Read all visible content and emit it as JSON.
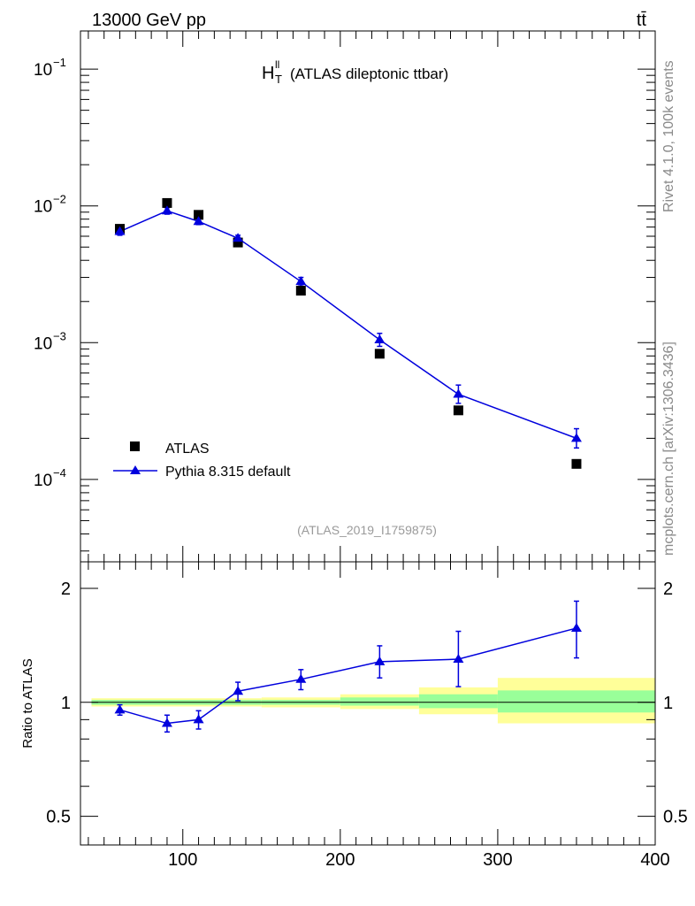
{
  "header": {
    "energy_label": "13000 GeV pp",
    "process_label": "tt̄",
    "side_top": "Rivet 4.1.0,  100k events",
    "side_bottom": "mcplots.cern.ch [arXiv:1306.3436]"
  },
  "chart_data": [
    {
      "type": "scatter",
      "title_main": "H",
      "title_sup": "ll",
      "title_sub": "T",
      "title_rest": " (ATLAS dileptonic ttbar)",
      "analysis_id": "(ATLAS_2019_I1759875)",
      "yscale": "log",
      "ylim": [
        2.5e-05,
        0.19
      ],
      "xlim": [
        35,
        400
      ],
      "ytick_labels": [
        {
          "value": 0.1,
          "base": "10",
          "exp": "−1"
        },
        {
          "value": 0.01,
          "base": "10",
          "exp": "−2"
        },
        {
          "value": 0.001,
          "base": "10",
          "exp": "−3"
        },
        {
          "value": 0.0001,
          "base": "10",
          "exp": "−4"
        }
      ],
      "legend": [
        {
          "label": "ATLAS",
          "marker": "square",
          "color": "#000000"
        },
        {
          "label": "Pythia 8.315 default",
          "marker": "triangle",
          "color": "#0000dd"
        }
      ],
      "series": [
        {
          "name": "ATLAS",
          "x": [
            60,
            90,
            110,
            135,
            175,
            225,
            275,
            350
          ],
          "y": [
            0.0068,
            0.0105,
            0.0086,
            0.0054,
            0.0024,
            0.00083,
            0.00032,
            0.00013
          ]
        },
        {
          "name": "Pythia 8.315 default",
          "x": [
            60,
            90,
            110,
            135,
            175,
            225,
            275,
            350
          ],
          "y": [
            0.0065,
            0.0092,
            0.0077,
            0.0058,
            0.0028,
            0.00105,
            0.00042,
            0.0002
          ],
          "yerr_lo": [
            0.0004,
            0.0005,
            0.0004,
            0.0003,
            0.0002,
            0.00011,
            6e-05,
            3e-05
          ],
          "yerr_hi": [
            0.0004,
            0.0005,
            0.0004,
            0.0003,
            0.0002,
            0.00012,
            7e-05,
            3.5e-05
          ]
        }
      ]
    },
    {
      "type": "scatter",
      "ylabel": "Ratio to ATLAS",
      "xlim": [
        35,
        400
      ],
      "ylim": [
        0.42,
        2.35
      ],
      "yscale": "log",
      "xticks": [
        100,
        200,
        300,
        400
      ],
      "xtick_labels": [
        "100",
        "200",
        "300",
        "400"
      ],
      "yticks": [
        0.5,
        1,
        2
      ],
      "ytick_labels": [
        "0.5",
        "1",
        "2"
      ],
      "bands": [
        {
          "x0": 42,
          "x1": 150,
          "green_lo": 0.985,
          "green_hi": 1.015,
          "yellow_lo": 0.975,
          "yellow_hi": 1.025
        },
        {
          "x0": 150,
          "x1": 200,
          "green_lo": 0.985,
          "green_hi": 1.015,
          "yellow_lo": 0.97,
          "yellow_hi": 1.03
        },
        {
          "x0": 200,
          "x1": 250,
          "green_lo": 0.98,
          "green_hi": 1.03,
          "yellow_lo": 0.96,
          "yellow_hi": 1.05
        },
        {
          "x0": 250,
          "x1": 300,
          "green_lo": 0.965,
          "green_hi": 1.05,
          "yellow_lo": 0.93,
          "yellow_hi": 1.095
        },
        {
          "x0": 300,
          "x1": 400,
          "green_lo": 0.94,
          "green_hi": 1.075,
          "yellow_lo": 0.88,
          "yellow_hi": 1.16
        }
      ],
      "series": [
        {
          "name": "Pythia 8.315 default / ATLAS",
          "x": [
            60,
            90,
            110,
            135,
            175,
            225,
            275,
            350
          ],
          "y": [
            0.955,
            0.88,
            0.9,
            1.07,
            1.15,
            1.28,
            1.3,
            1.57
          ],
          "yerr_lo": [
            0.03,
            0.045,
            0.05,
            0.06,
            0.07,
            0.12,
            0.2,
            0.26
          ],
          "yerr_hi": [
            0.03,
            0.045,
            0.05,
            0.06,
            0.07,
            0.13,
            0.24,
            0.28
          ]
        }
      ]
    }
  ]
}
